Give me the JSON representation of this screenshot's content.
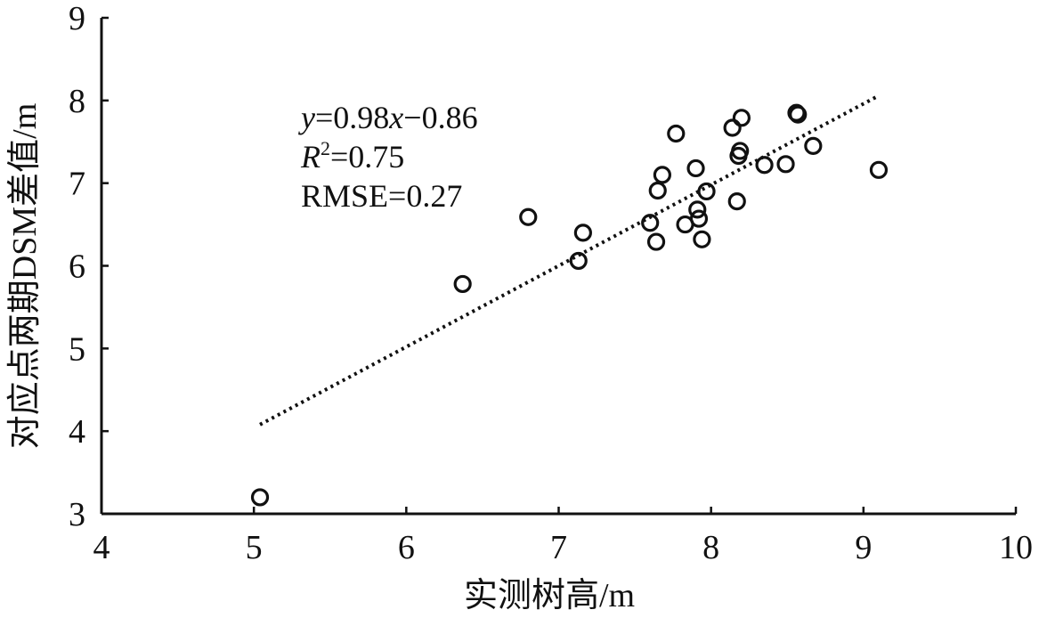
{
  "chart_data": {
    "type": "scatter",
    "title": "",
    "xlabel": "实测树高/m",
    "ylabel": "对应点两期DSM差值/m",
    "xlim": [
      4,
      10
    ],
    "ylim": [
      3,
      9
    ],
    "xticks": [
      4,
      5,
      6,
      7,
      8,
      9,
      10
    ],
    "yticks": [
      3,
      4,
      5,
      6,
      7,
      8,
      9
    ],
    "grid": false,
    "points": [
      {
        "x": 5.04,
        "y": 3.2
      },
      {
        "x": 6.37,
        "y": 5.78
      },
      {
        "x": 6.8,
        "y": 6.59
      },
      {
        "x": 7.13,
        "y": 6.06
      },
      {
        "x": 7.16,
        "y": 6.4
      },
      {
        "x": 7.6,
        "y": 6.52
      },
      {
        "x": 7.64,
        "y": 6.29
      },
      {
        "x": 7.65,
        "y": 6.91
      },
      {
        "x": 7.68,
        "y": 7.1
      },
      {
        "x": 7.77,
        "y": 7.6
      },
      {
        "x": 7.83,
        "y": 6.5
      },
      {
        "x": 7.9,
        "y": 7.18
      },
      {
        "x": 7.91,
        "y": 6.68
      },
      {
        "x": 7.92,
        "y": 6.57
      },
      {
        "x": 7.94,
        "y": 6.32
      },
      {
        "x": 7.97,
        "y": 6.9
      },
      {
        "x": 8.14,
        "y": 7.67
      },
      {
        "x": 8.17,
        "y": 6.78
      },
      {
        "x": 8.18,
        "y": 7.33
      },
      {
        "x": 8.19,
        "y": 7.39
      },
      {
        "x": 8.2,
        "y": 7.79
      },
      {
        "x": 8.35,
        "y": 7.22
      },
      {
        "x": 8.49,
        "y": 7.23
      },
      {
        "x": 8.56,
        "y": 7.85
      },
      {
        "x": 8.57,
        "y": 7.83
      },
      {
        "x": 8.67,
        "y": 7.45
      },
      {
        "x": 9.1,
        "y": 7.16
      }
    ],
    "trendline": {
      "style": "dotted",
      "x_start": 5.04,
      "x_end": 9.1,
      "slope": 0.98,
      "intercept": -0.86
    },
    "annotations": {
      "equation": {
        "var_y": "y",
        "text": "=0.98",
        "var_x": "x",
        "tail": "−0.86"
      },
      "r2": {
        "var": "R",
        "sup": "2",
        "text": "=0.75"
      },
      "rmse": "RMSE=0.27"
    }
  }
}
